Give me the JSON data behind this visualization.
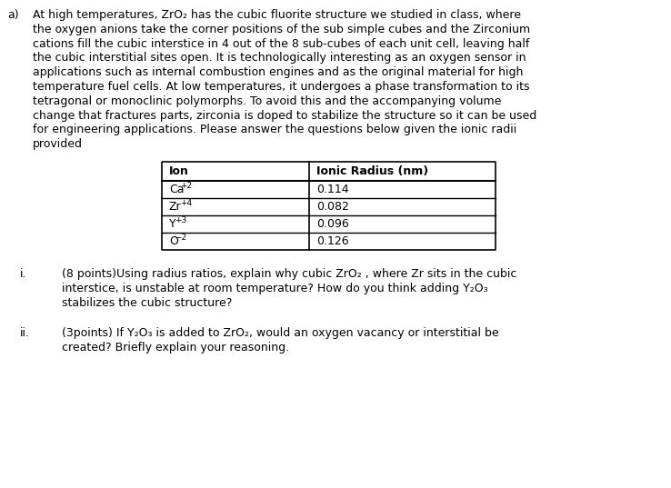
{
  "bg_color": "#ffffff",
  "text_color": "#000000",
  "label_a": "a)",
  "para_lines": [
    "At high temperatures, ZrO₂ has the cubic fluorite structure we studied in class, where",
    "the oxygen anions take the corner positions of the sub simple cubes and the Zirconium",
    "cations fill the cubic interstice in 4 out of the 8 sub-cubes of each unit cell, leaving half",
    "the cubic interstitial sites open. It is technologically interesting as an oxygen sensor in",
    "applications such as internal combustion engines and as the original material for high",
    "temperature fuel cells. At low temperatures, it undergoes a phase transformation to its",
    "tetragonal or monoclinic polymorphs. To avoid this and the accompanying volume",
    "change that fractures parts, zirconia is doped to stabilize the structure so it can be used",
    "for engineering applications. Please answer the questions below given the ionic radii",
    "provided"
  ],
  "table_headers": [
    "Ion",
    "Ionic Radius (nm)"
  ],
  "table_data": [
    [
      "Ca+2",
      "0.114"
    ],
    [
      "Zr+4",
      "0.082"
    ],
    [
      "Y+3",
      "0.096"
    ],
    [
      "O-2",
      "0.126"
    ]
  ],
  "sub_i_label": "i.",
  "sub_i_line1": "(8 points)Using radius ratios, explain why cubic ZrO₂ , where Zr sits in the cubic",
  "sub_i_line2": "interstice, is unstable at room temperature? How do you think adding Y₂O₃",
  "sub_i_line3": "stabilizes the cubic structure?",
  "sub_ii_label": "ii.",
  "sub_ii_line1": "(3points) If Y₂O₃ is added to ZrO₂, would an oxygen vacancy or interstitial be",
  "sub_ii_line2": "created? Briefly explain your reasoning.",
  "font_size": 9.0,
  "font_family": "Arial"
}
